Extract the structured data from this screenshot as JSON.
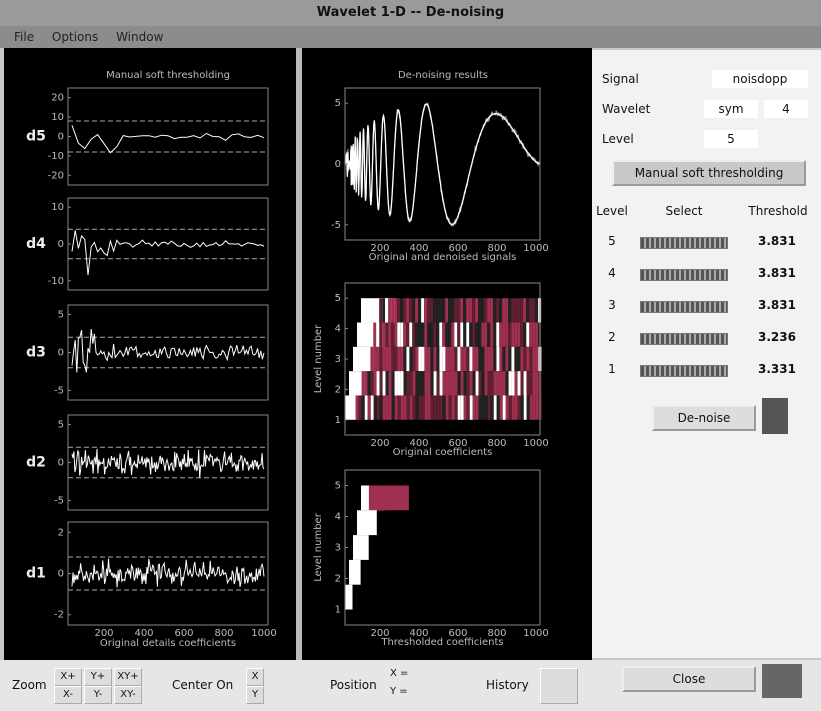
{
  "window": {
    "title": "Wavelet 1-D  --  De-noising",
    "menu": [
      "File",
      "Options",
      "Window"
    ]
  },
  "details_panel": {
    "title": "Manual soft thresholding",
    "plots": [
      {
        "label": "d5",
        "yticks": [
          20,
          10,
          0,
          -10,
          -20
        ]
      },
      {
        "label": "d4",
        "yticks": [
          10,
          0,
          -10
        ]
      },
      {
        "label": "d3",
        "yticks": [
          5,
          0,
          -5
        ]
      },
      {
        "label": "d2",
        "yticks": [
          5,
          0,
          -5
        ]
      },
      {
        "label": "d1",
        "yticks": [
          2,
          0,
          -2
        ]
      }
    ],
    "xticks": [
      200,
      400,
      600,
      800,
      1000
    ],
    "xlabel": "Original details coefficients"
  },
  "results_panel": {
    "title": "De-noising results",
    "plots": [
      {
        "yticks": [
          5,
          0,
          -5
        ],
        "xlabel": "Original and denoised signals"
      },
      {
        "ylabel": "Level number",
        "yticks": [
          5,
          4,
          3,
          2,
          1
        ],
        "xlabel": "Original coefficients"
      },
      {
        "ylabel": "Level number",
        "yticks": [
          5,
          4,
          3,
          2,
          1
        ],
        "xlabel": "Thresholded coefficients"
      }
    ],
    "xticks": [
      200,
      400,
      600,
      800,
      1000
    ]
  },
  "controls": {
    "signal_label": "Signal",
    "signal": "noisdopp",
    "wavelet_label": "Wavelet",
    "wavelet_family": "sym",
    "wavelet_order": 4,
    "level_label": "Level",
    "level": 5,
    "mode_button": "Manual soft thresholding",
    "table_header": [
      "Level",
      "Select",
      "Threshold"
    ],
    "rows": [
      [
        5,
        3.831
      ],
      [
        4,
        3.831
      ],
      [
        3,
        3.831
      ],
      [
        2,
        3.236
      ],
      [
        1,
        3.331
      ]
    ],
    "de_noise_button": "De-noise",
    "close_button": "Close"
  },
  "toolbar": {
    "zoom": "Zoom",
    "zoom_buttons": [
      "X+",
      "Y+",
      "XY+",
      "X-",
      "Y-",
      "XY-"
    ],
    "center_on": "Center On",
    "center_buttons": [
      "X",
      "Y"
    ],
    "position": "Position",
    "position_fields": [
      "X =",
      "Y ="
    ],
    "history": "History"
  }
}
